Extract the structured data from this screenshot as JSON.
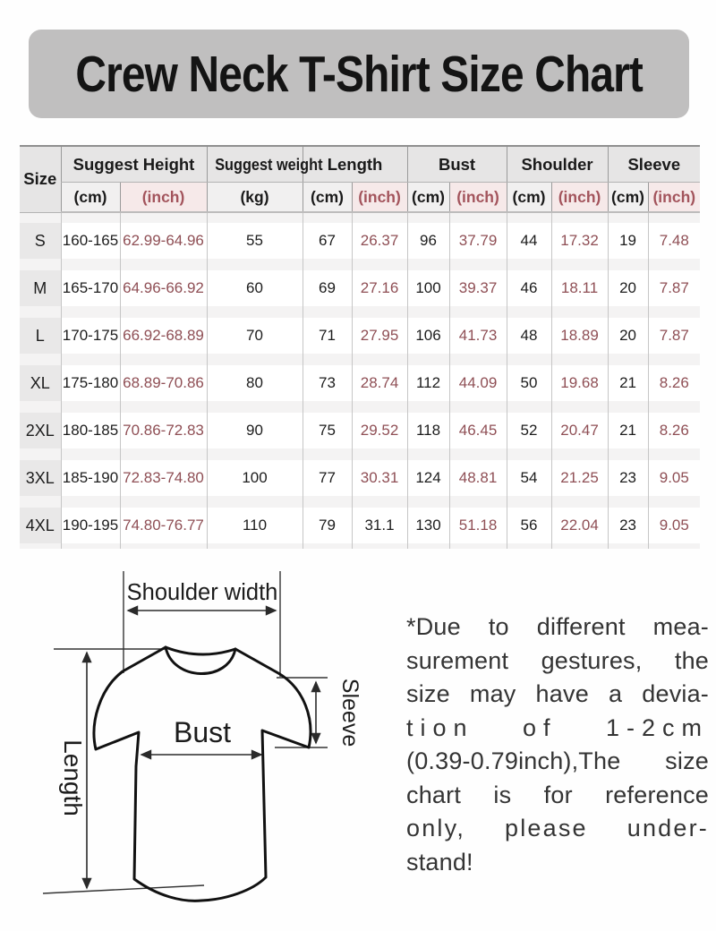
{
  "title": {
    "text": "Crew Neck T-Shirt Size Chart",
    "bg": "#c0bfbf",
    "color": "#141414"
  },
  "table": {
    "header": {
      "size_label": "Size",
      "groups": [
        {
          "label": "Suggest Height",
          "subs": [
            "(cm)",
            "(inch)"
          ]
        },
        {
          "label": "Suggest weight",
          "subs": [
            "(kg)"
          ]
        },
        {
          "label": "Length",
          "subs": [
            "(cm)",
            "(inch)"
          ]
        },
        {
          "label": "Bust",
          "subs": [
            "(cm)",
            "(inch)"
          ]
        },
        {
          "label": "Shoulder",
          "subs": [
            "(cm)",
            "(inch)"
          ]
        },
        {
          "label": "Sleeve",
          "subs": [
            "(cm)",
            "(inch)"
          ]
        }
      ]
    },
    "rows": [
      {
        "size": "S",
        "height_cm": "160-165",
        "height_inch": "62.99-64.96",
        "weight_kg": "55",
        "length_cm": "67",
        "length_inch": "26.37",
        "bust_cm": "96",
        "bust_inch": "37.79",
        "shoulder_cm": "44",
        "shoulder_inch": "17.32",
        "sleeve_cm": "19",
        "sleeve_inch": "7.48"
      },
      {
        "size": "M",
        "height_cm": "165-170",
        "height_inch": "64.96-66.92",
        "weight_kg": "60",
        "length_cm": "69",
        "length_inch": "27.16",
        "bust_cm": "100",
        "bust_inch": "39.37",
        "shoulder_cm": "46",
        "shoulder_inch": "18.11",
        "sleeve_cm": "20",
        "sleeve_inch": "7.87"
      },
      {
        "size": "L",
        "height_cm": "170-175",
        "height_inch": "66.92-68.89",
        "weight_kg": "70",
        "length_cm": "71",
        "length_inch": "27.95",
        "bust_cm": "106",
        "bust_inch": "41.73",
        "shoulder_cm": "48",
        "shoulder_inch": "18.89",
        "sleeve_cm": "20",
        "sleeve_inch": "7.87"
      },
      {
        "size": "XL",
        "height_cm": "175-180",
        "height_inch": "68.89-70.86",
        "weight_kg": "80",
        "length_cm": "73",
        "length_inch": "28.74",
        "bust_cm": "112",
        "bust_inch": "44.09",
        "shoulder_cm": "50",
        "shoulder_inch": "19.68",
        "sleeve_cm": "21",
        "sleeve_inch": "8.26"
      },
      {
        "size": "2XL",
        "height_cm": "180-185",
        "height_inch": "70.86-72.83",
        "weight_kg": "90",
        "length_cm": "75",
        "length_inch": "29.52",
        "bust_cm": "118",
        "bust_inch": "46.45",
        "shoulder_cm": "52",
        "shoulder_inch": "20.47",
        "sleeve_cm": "21",
        "sleeve_inch": "8.26"
      },
      {
        "size": "3XL",
        "height_cm": "185-190",
        "height_inch": "72.83-74.80",
        "weight_kg": "100",
        "length_cm": "77",
        "length_inch": "30.31",
        "bust_cm": "124",
        "bust_inch": "48.81",
        "shoulder_cm": "54",
        "shoulder_inch": "21.25",
        "sleeve_cm": "23",
        "sleeve_inch": "9.05"
      },
      {
        "size": "4XL",
        "height_cm": "190-195",
        "height_inch": "74.80-76.77",
        "weight_kg": "110",
        "length_cm": "79",
        "length_inch": "31.1",
        "bust_cm": "130",
        "bust_inch": "51.18",
        "shoulder_cm": "56",
        "shoulder_inch": "22.04",
        "sleeve_cm": "23",
        "sleeve_inch": "9.05"
      }
    ],
    "colors": {
      "inch_text": "#8f4f55",
      "inch_header_text": "#a3545c",
      "cm_text": "#1d1d1d",
      "dark_inch_values": [
        "31.1"
      ]
    }
  },
  "diagram": {
    "labels": {
      "shoulder_width": "Shoulder width",
      "sleeve": "Sleeve",
      "bust": "Bust",
      "length": "Length"
    }
  },
  "note": {
    "lines": [
      "*Due to different mea-",
      "surement gestures, the",
      "size may have a devia-",
      "tion of 1-2cm",
      "(0.39-0.79inch),The size",
      "chart is for reference",
      "only, please under-",
      "stand!"
    ]
  }
}
